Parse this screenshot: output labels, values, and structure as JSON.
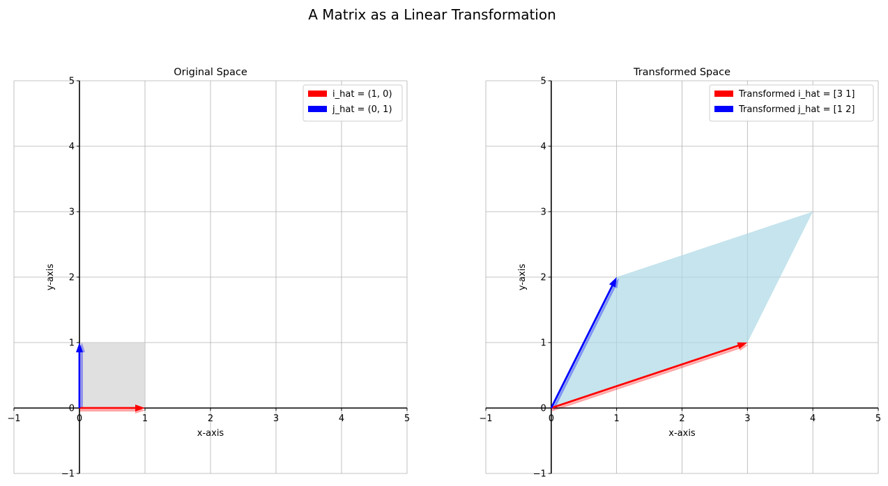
{
  "figure": {
    "title": "A Matrix as a Linear Transformation"
  },
  "colors": {
    "i_hat": "#ff0000",
    "j_hat": "#0000ff",
    "original_fill": "#cfcfcf",
    "transformed_fill": "#add8e6",
    "grid": "#b0b0b0",
    "axis": "#000000"
  },
  "chart_data": [
    {
      "type": "vector-plot",
      "title": "Original Space",
      "xlabel": "x-axis",
      "ylabel": "y-axis",
      "xlim": [
        -1,
        5
      ],
      "ylim": [
        -1,
        5
      ],
      "xticks": [
        -1,
        0,
        1,
        2,
        3,
        4,
        5
      ],
      "yticks": [
        -1,
        0,
        1,
        2,
        3,
        4,
        5
      ],
      "grid": true,
      "legend_position": "top-right",
      "polygon": [
        [
          0,
          0
        ],
        [
          1,
          0
        ],
        [
          1,
          1
        ],
        [
          0,
          1
        ]
      ],
      "vectors": [
        {
          "name": "i_hat = (1, 0)",
          "from": [
            0,
            0
          ],
          "to": [
            1,
            0
          ],
          "color_key": "i_hat"
        },
        {
          "name": "j_hat = (0, 1)",
          "from": [
            0,
            0
          ],
          "to": [
            0,
            1
          ],
          "color_key": "j_hat"
        }
      ]
    },
    {
      "type": "vector-plot",
      "title": "Transformed Space",
      "xlabel": "x-axis",
      "ylabel": "y-axis",
      "xlim": [
        -1,
        5
      ],
      "ylim": [
        -1,
        5
      ],
      "xticks": [
        -1,
        0,
        1,
        2,
        3,
        4,
        5
      ],
      "yticks": [
        -1,
        0,
        1,
        2,
        3,
        4,
        5
      ],
      "grid": true,
      "legend_position": "top-right",
      "polygon": [
        [
          0,
          0
        ],
        [
          3,
          1
        ],
        [
          4,
          3
        ],
        [
          1,
          2
        ]
      ],
      "vectors": [
        {
          "name": "Transformed i_hat = [3 1]",
          "from": [
            0,
            0
          ],
          "to": [
            3,
            1
          ],
          "color_key": "i_hat"
        },
        {
          "name": "Transformed j_hat = [1 2]",
          "from": [
            0,
            0
          ],
          "to": [
            1,
            2
          ],
          "color_key": "j_hat"
        }
      ]
    }
  ]
}
